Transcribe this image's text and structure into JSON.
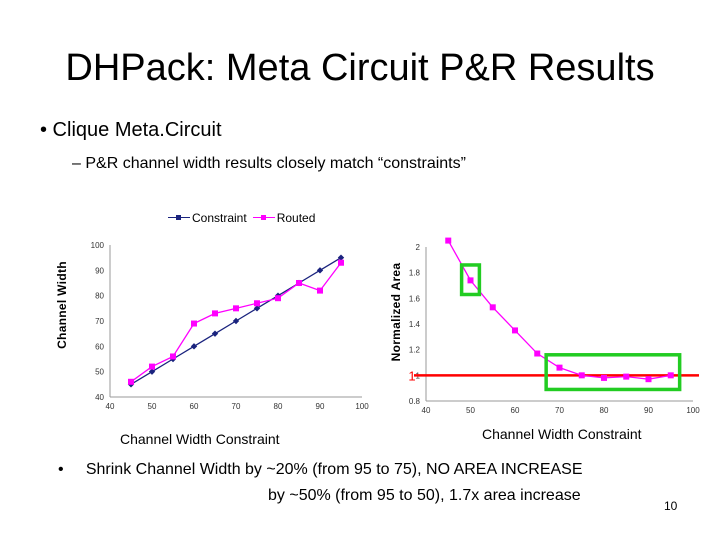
{
  "slide": {
    "title": "DHPack: Meta Circuit P&R Results",
    "bullet_1": "• Clique Meta.Circuit",
    "sub_bullet": "– P&R channel width results closely match “constraints”",
    "bullet_2_marker": "•",
    "bullet_2_line_1": "Shrink Channel Width by ~20% (from 95 to 75), NO AREA INCREASE",
    "bullet_2_line_2": "by ~50% (from 95 to 50), 1.7x area increase",
    "page_number": "10"
  },
  "colors": {
    "constraint": "#1a237e",
    "routed": "#ff00ff",
    "highlight_box": "#22cc22",
    "reference_line": "#ff0000",
    "grid": "#cccccc"
  },
  "chart_data": [
    {
      "type": "line",
      "legend_placement": "top",
      "xlabel": "Channel Width Constraint",
      "ylabel": "Channel Width",
      "xlim": [
        40,
        100
      ],
      "ylim": [
        40,
        100
      ],
      "xticks": [
        40,
        50,
        60,
        70,
        80,
        90,
        100
      ],
      "yticks": [
        40,
        50,
        60,
        70,
        80,
        90,
        100
      ],
      "grid": false,
      "series": [
        {
          "name": "Constraint",
          "color": "#1a237e",
          "marker": "diamond",
          "x": [
            45,
            50,
            55,
            60,
            65,
            70,
            75,
            80,
            85,
            90,
            95
          ],
          "y": [
            45,
            50,
            55,
            60,
            65,
            70,
            75,
            80,
            85,
            90,
            95
          ]
        },
        {
          "name": "Routed",
          "color": "#ff00ff",
          "marker": "square",
          "x": [
            45,
            50,
            55,
            60,
            65,
            70,
            75,
            80,
            85,
            90,
            95
          ],
          "y": [
            46,
            52,
            56,
            69,
            73,
            75,
            77,
            79,
            85,
            82,
            93
          ]
        }
      ]
    },
    {
      "type": "line",
      "xlabel": "Channel Width Constraint",
      "ylabel": "Normalized Area",
      "xlim": [
        40,
        100
      ],
      "ylim": [
        0.8,
        2.0
      ],
      "xticks": [
        40,
        50,
        60,
        70,
        80,
        90,
        100
      ],
      "yticks": [
        "0.8",
        "1",
        "1.2",
        "1.4",
        "1.6",
        "1.8",
        "2"
      ],
      "grid": false,
      "reference_line": {
        "y": 1.0,
        "label": "1",
        "color": "#ff0000"
      },
      "series": [
        {
          "color": "#ff00ff",
          "marker": "square",
          "x": [
            45,
            50,
            55,
            60,
            65,
            70,
            75,
            80,
            85,
            90,
            95
          ],
          "y": [
            2.05,
            1.74,
            1.53,
            1.35,
            1.17,
            1.06,
            1.0,
            0.98,
            0.99,
            0.97,
            1.0
          ]
        }
      ],
      "highlights": [
        {
          "shape": "box",
          "x_range": [
            48,
            52
          ],
          "y_range": [
            1.63,
            1.86
          ],
          "color": "#22cc22"
        },
        {
          "shape": "box",
          "x_range": [
            67,
            97
          ],
          "y_range": [
            0.89,
            1.16
          ],
          "color": "#22cc22"
        }
      ]
    }
  ]
}
